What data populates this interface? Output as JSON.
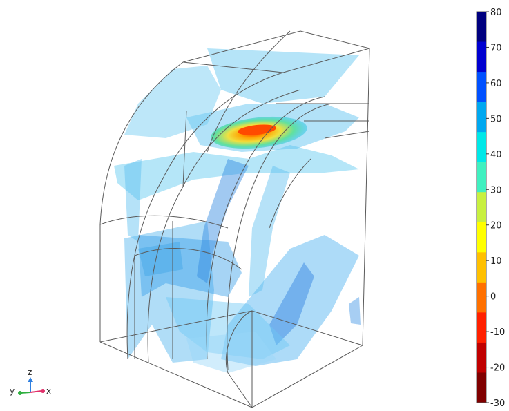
{
  "colorbar": {
    "ticks": [
      "80",
      "70",
      "60",
      "50",
      "40",
      "30",
      "20",
      "10",
      "0",
      "-10",
      "-20",
      "-30"
    ],
    "min": -30,
    "max": 80,
    "colors": [
      "#00007f",
      "#0000d0",
      "#0050ff",
      "#00a8f0",
      "#00e8e8",
      "#40f0c0",
      "#c8f040",
      "#ffff00",
      "#ffc000",
      "#ff7000",
      "#ff2000",
      "#c00000",
      "#800000"
    ]
  },
  "triad": {
    "x": "x",
    "y": "y",
    "z": "z",
    "colors": {
      "x": "#e0306a",
      "y": "#30b040",
      "z": "#3080e0"
    }
  }
}
